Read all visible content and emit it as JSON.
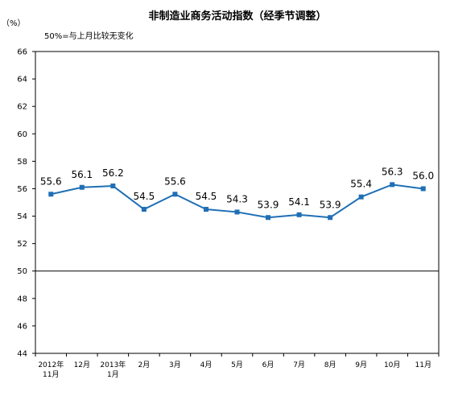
{
  "chart_data": {
    "type": "line",
    "title": "非制造业商务活动指数（经季节调整）",
    "unit_label": "（%）",
    "note": "50%=与上月比较无变化",
    "ylim": [
      44,
      66
    ],
    "yticks": [
      44,
      46,
      48,
      50,
      52,
      54,
      56,
      58,
      60,
      62,
      64,
      66
    ],
    "reference_line": 50,
    "grid": false,
    "categories": [
      [
        "2012年",
        "11月"
      ],
      [
        "12月"
      ],
      [
        "2013年",
        "1月"
      ],
      [
        "2月"
      ],
      [
        "3月"
      ],
      [
        "4月"
      ],
      [
        "5月"
      ],
      [
        "6月"
      ],
      [
        "7月"
      ],
      [
        "8月"
      ],
      [
        "9月"
      ],
      [
        "10月"
      ],
      [
        "11月"
      ]
    ],
    "series": [
      {
        "values": [
          55.6,
          56.1,
          56.2,
          54.5,
          55.6,
          54.5,
          54.3,
          53.9,
          54.1,
          53.9,
          55.4,
          56.3,
          56.0
        ],
        "labels": [
          "55.6",
          "56.1",
          "56.2",
          "54.5",
          "55.6",
          "54.5",
          "54.3",
          "53.9",
          "54.1",
          "53.9",
          "55.4",
          "56.3",
          "56.0"
        ],
        "color": "#1f6fb5"
      }
    ]
  }
}
